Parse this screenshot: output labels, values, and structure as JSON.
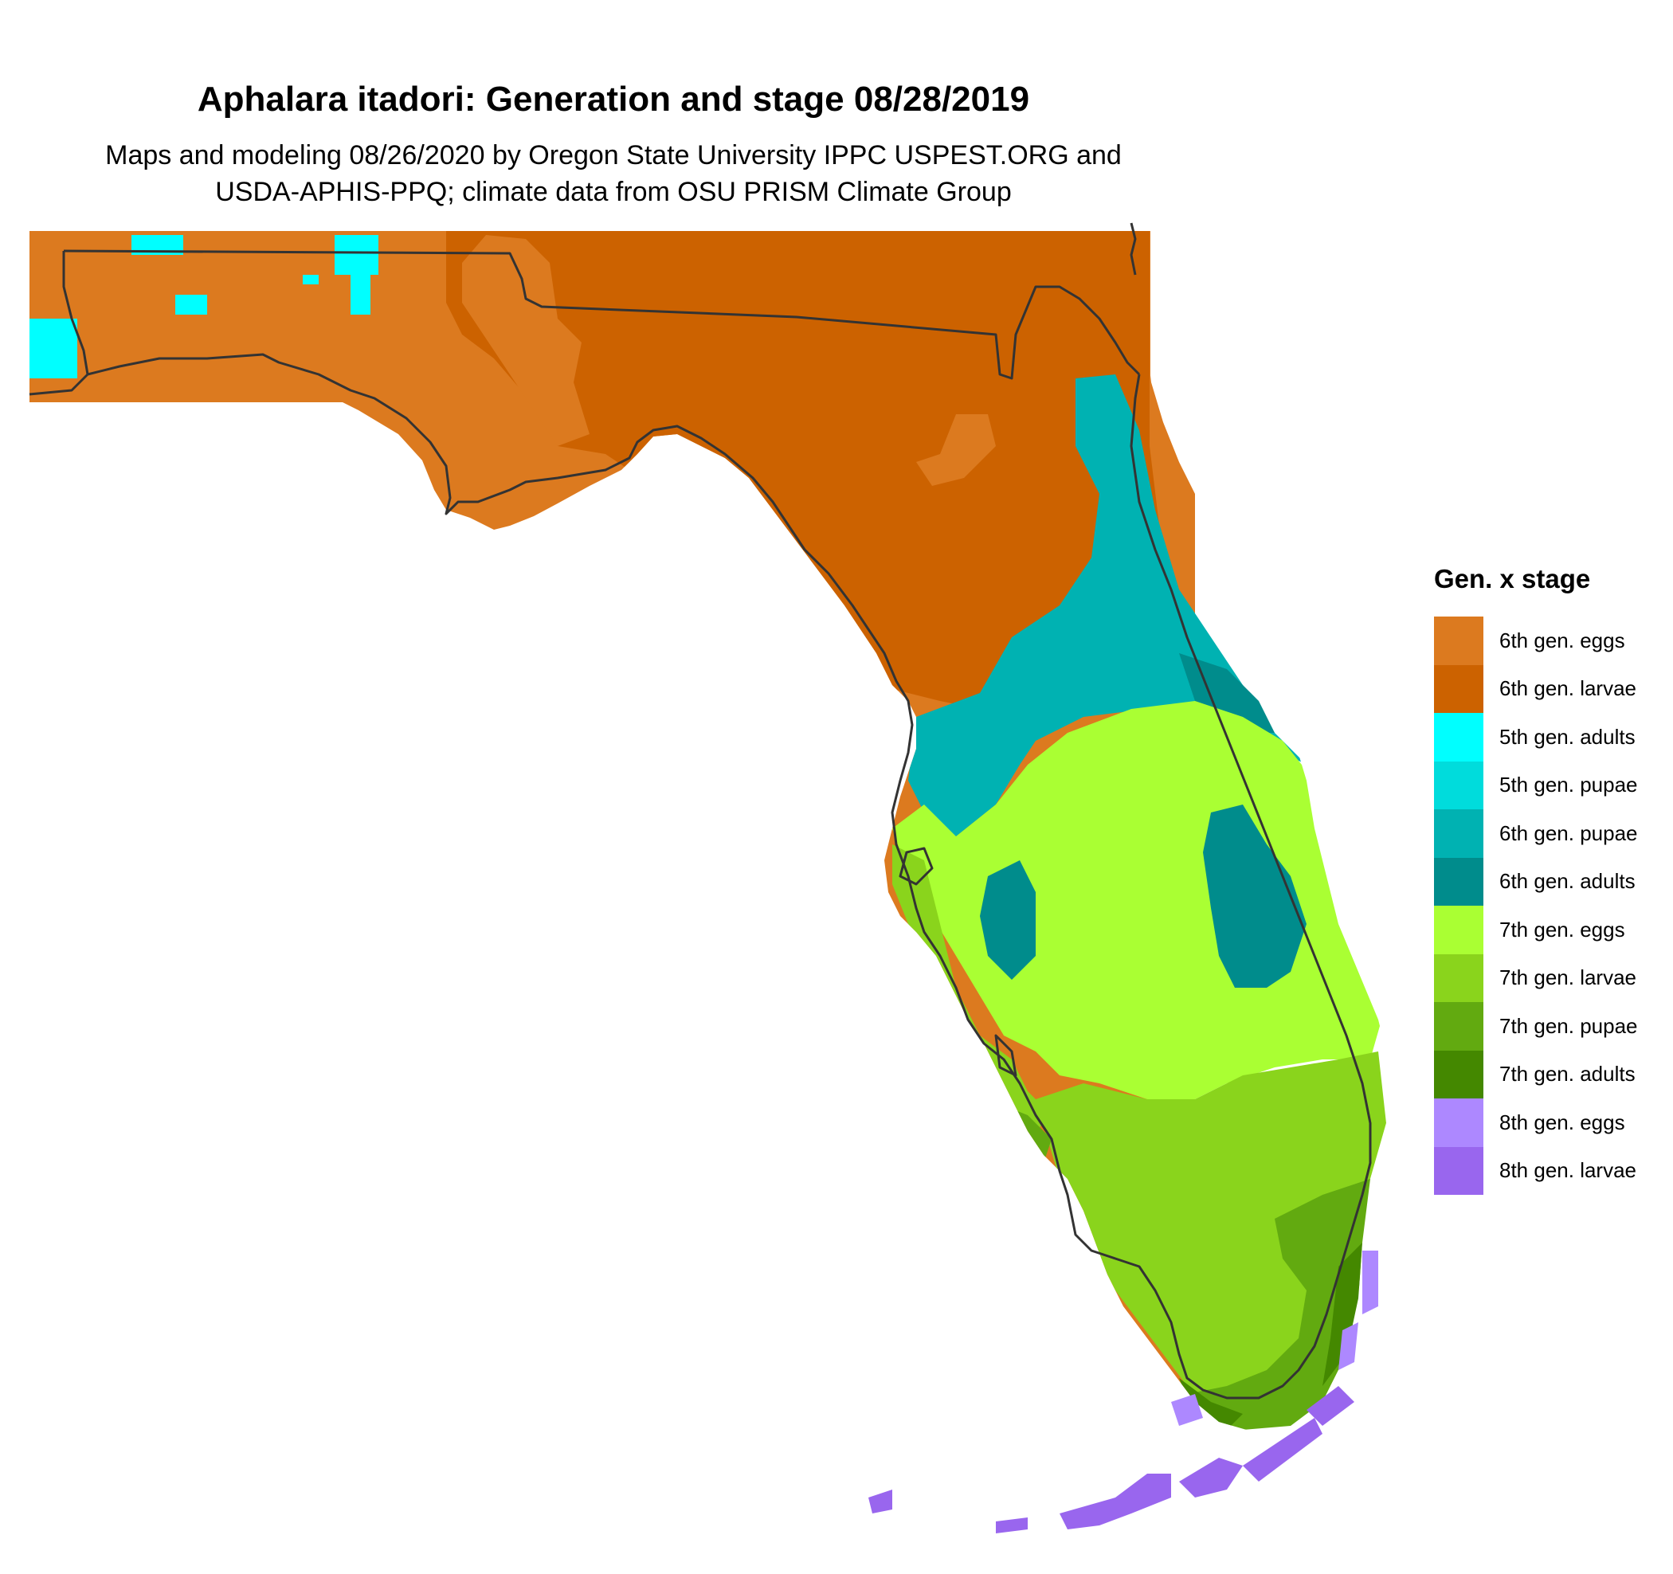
{
  "title": "Aphalara itadori: Generation and stage 08/28/2019",
  "subtitle_lines": [
    "Maps and modeling 08/26/2020 by Oregon State University IPPC USPEST.ORG and",
    "USDA-APHIS-PPQ; climate data from OSU PRISM Climate Group"
  ],
  "legend": {
    "title": "Gen. x stage",
    "items": [
      {
        "label": "6th gen. eggs",
        "color": "#dc7a1f"
      },
      {
        "label": "6th gen. larvae",
        "color": "#cc6200"
      },
      {
        "label": "5th gen. adults",
        "color": "#00ffff"
      },
      {
        "label": "5th gen. pupae",
        "color": "#00dcdc"
      },
      {
        "label": "6th gen. pupae",
        "color": "#00b2b2"
      },
      {
        "label": "6th gen. adults",
        "color": "#008c8c"
      },
      {
        "label": "7th gen. eggs",
        "color": "#aaff33"
      },
      {
        "label": "7th gen. larvae",
        "color": "#8ad41c"
      },
      {
        "label": "7th gen. pupae",
        "color": "#62aa10"
      },
      {
        "label": "7th gen. adults",
        "color": "#448800"
      },
      {
        "label": "8th gen. eggs",
        "color": "#ad88ff"
      },
      {
        "label": "8th gen. larvae",
        "color": "#9966ee"
      }
    ]
  },
  "boundary_color": "#333333"
}
